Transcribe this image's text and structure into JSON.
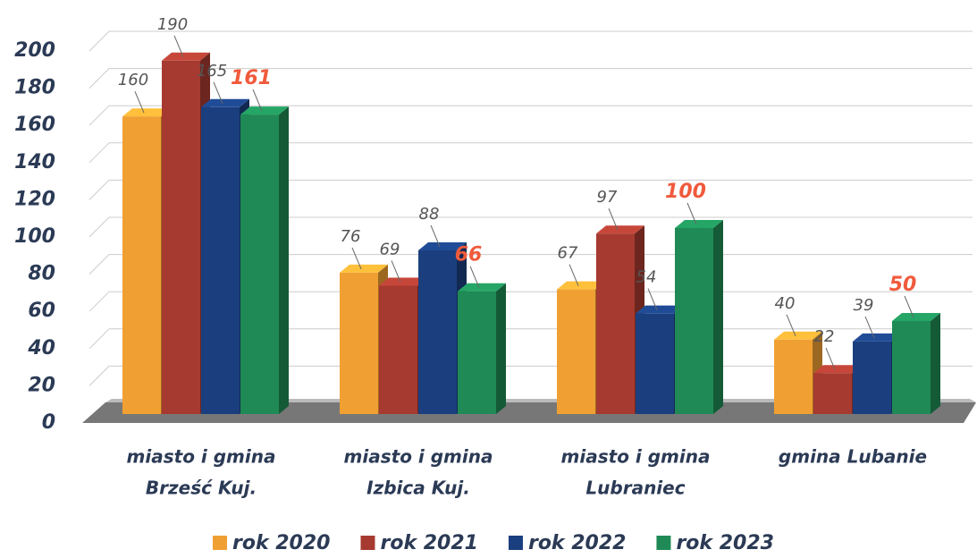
{
  "chart_data": {
    "type": "bar3d",
    "categories": [
      [
        "miasto  i gmina",
        "Brześć Kuj."
      ],
      [
        "miasto i gmina",
        "Izbica Kuj."
      ],
      [
        "miasto i gmina",
        "Lubraniec"
      ],
      [
        "gmina Lubanie"
      ]
    ],
    "series": [
      {
        "name": "rok 2020",
        "color": "#f0a032",
        "label_color": "#555555",
        "values": [
          160,
          76,
          67,
          40
        ]
      },
      {
        "name": "rok 2021",
        "color": "#a63a30",
        "label_color": "#555555",
        "values": [
          190,
          69,
          97,
          22
        ]
      },
      {
        "name": "rok 2022",
        "color": "#1b3f7e",
        "label_color": "#555555",
        "values": [
          165,
          88,
          54,
          39
        ]
      },
      {
        "name": "rok 2023",
        "color": "#1f8a55",
        "label_color": "#f05a3c",
        "values": [
          161,
          66,
          100,
          50
        ]
      }
    ],
    "ylim": [
      0,
      200
    ],
    "yticks": [
      0,
      20,
      40,
      60,
      80,
      100,
      120,
      140,
      160,
      180,
      200
    ],
    "grid": true
  }
}
